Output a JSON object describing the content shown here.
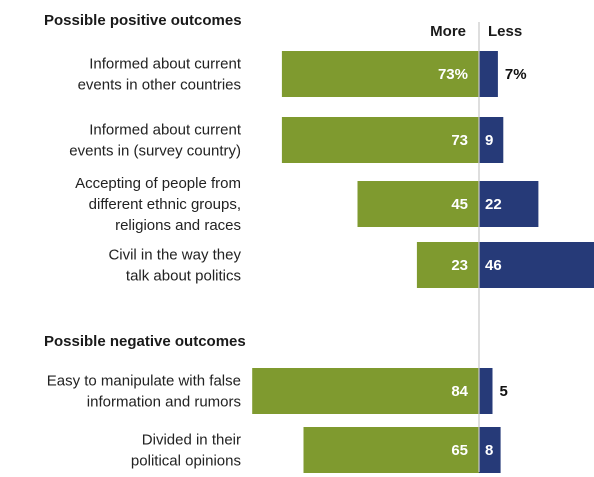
{
  "chart_data": {
    "type": "bar",
    "subtype": "diverging-horizontal",
    "column_headers": {
      "more": "More",
      "less": "Less"
    },
    "colors": {
      "more": "#7f9a2f",
      "less": "#263a78",
      "axis": "#c8c8c8"
    },
    "groups": [
      {
        "title": "Possible positive outcomes",
        "items": [
          {
            "label": [
              "Informed about current",
              "events in other countries"
            ],
            "more": 73,
            "less": 7,
            "more_label": "73%",
            "less_label": "7%"
          },
          {
            "label": [
              "Informed about current",
              "events in (survey country)"
            ],
            "more": 73,
            "less": 9,
            "more_label": "73",
            "less_label": "9"
          },
          {
            "label": [
              "Accepting of people from",
              "different ethnic groups,",
              "religions and races"
            ],
            "more": 45,
            "less": 22,
            "more_label": "45",
            "less_label": "22"
          },
          {
            "label": [
              "Civil in the way they",
              "talk about politics"
            ],
            "more": 23,
            "less": 46,
            "more_label": "23",
            "less_label": "46"
          }
        ]
      },
      {
        "title": "Possible negative outcomes",
        "items": [
          {
            "label": [
              "Easy to manipulate with false",
              "information and rumors"
            ],
            "more": 84,
            "less": 5,
            "more_label": "84",
            "less_label": "5"
          },
          {
            "label": [
              "Divided in their",
              "political opinions"
            ],
            "more": 65,
            "less": 8,
            "more_label": "65",
            "less_label": "8"
          }
        ]
      }
    ]
  }
}
